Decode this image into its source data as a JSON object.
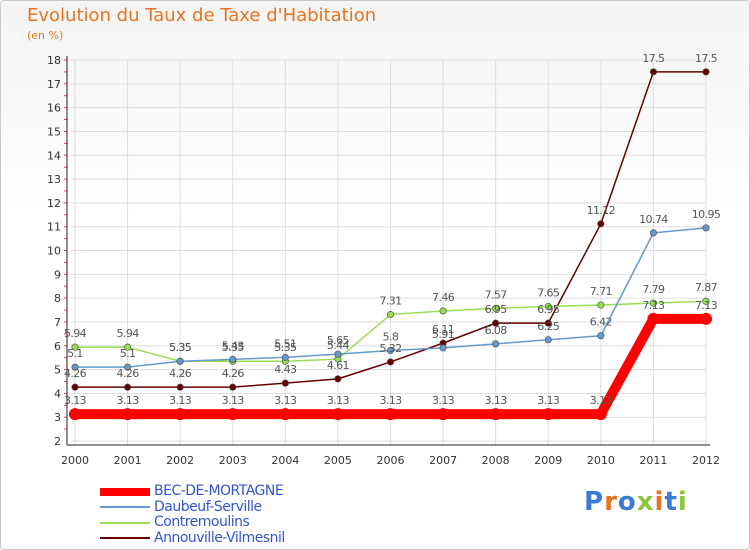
{
  "title": "Evolution du Taux de Taxe d'Habitation",
  "subtitle": "(en %)",
  "brand": {
    "text": "Proxiti",
    "colors": [
      "#3a7bd5",
      "#e8731e",
      "#3a7bd5",
      "#8cc63f",
      "#e8731e",
      "#3a7bd5",
      "#8cc63f"
    ]
  },
  "chart_data": {
    "type": "line",
    "title": "Evolution du Taux de Taxe d'Habitation",
    "ylabel": "(en %)",
    "xlabel": "",
    "x": [
      "2000",
      "2001",
      "2002",
      "2003",
      "2004",
      "2005",
      "2006",
      "2007",
      "2008",
      "2009",
      "2010",
      "2011",
      "2012"
    ],
    "ylim": [
      2,
      18
    ],
    "yticks": [
      "2",
      "3",
      "4",
      "5",
      "6",
      "7",
      "8",
      "9",
      "10",
      "11",
      "12",
      "13",
      "14",
      "15",
      "16",
      "17",
      "18"
    ],
    "grid": true,
    "legend_position": "bottom-left",
    "series": [
      {
        "name": "BEC-DE-MORTAGNE",
        "color": "#ff0000",
        "values": [
          3.13,
          3.13,
          3.13,
          3.13,
          3.13,
          3.13,
          3.13,
          3.13,
          3.13,
          3.13,
          3.13,
          7.13,
          7.13
        ],
        "labels": [
          "3.13",
          "3.13",
          "3.13",
          "3.13",
          "3.13",
          "3.13",
          "3.13",
          "3.13",
          "3.13",
          "3.13",
          "3.13",
          "7.13",
          "7.13"
        ]
      },
      {
        "name": "Daubeuf-Serville",
        "color": "#6699cc",
        "values": [
          5.1,
          5.1,
          5.35,
          5.43,
          5.51,
          5.65,
          5.8,
          5.91,
          6.08,
          6.25,
          6.42,
          10.74,
          10.95
        ],
        "labels": [
          "5.1",
          "5.1",
          "5.35",
          "5.43",
          "5.51",
          "5.65",
          "5.8",
          "5.91",
          "6.08",
          "6.25",
          "6.42",
          "10.74",
          "10.95"
        ]
      },
      {
        "name": "Contremoulins",
        "color": "#99dd55",
        "values": [
          5.94,
          5.94,
          5.35,
          5.35,
          5.35,
          5.44,
          7.31,
          7.46,
          7.57,
          7.65,
          7.71,
          7.79,
          7.87
        ],
        "labels": [
          "5.94",
          "5.94",
          "5.35",
          "5.35",
          "5.35",
          "5.44",
          "7.31",
          "7.46",
          "7.57",
          "7.65",
          "7.71",
          "7.79",
          "7.87"
        ]
      },
      {
        "name": "Annouville-Vilmesnil",
        "color": "#660000",
        "values": [
          4.26,
          4.26,
          4.26,
          4.26,
          4.43,
          4.61,
          5.32,
          6.11,
          6.95,
          6.95,
          11.12,
          17.5,
          17.5
        ],
        "labels": [
          "4.26",
          "4.26",
          "4.26",
          "4.26",
          "4.43",
          "4.61",
          "5.32",
          "6.11",
          "6.95",
          "6.95",
          "11.12",
          "17.5",
          "17.5"
        ]
      }
    ]
  }
}
